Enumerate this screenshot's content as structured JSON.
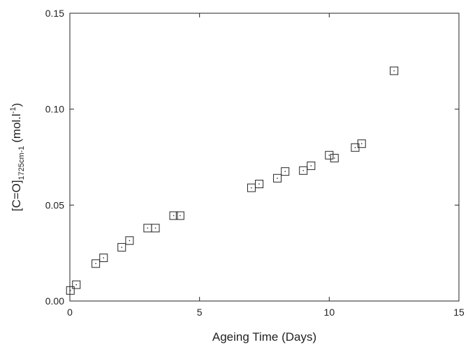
{
  "chart_data": {
    "type": "scatter",
    "title": "",
    "xlabel": "Ageing Time (Days)",
    "ylabel": {
      "main": "[C=O]",
      "subscript": "1725cm-1",
      "unit_open": " (mol.l",
      "unit_sup": "-1",
      "unit_close": ")"
    },
    "xlim": [
      0,
      15
    ],
    "ylim": [
      0,
      0.15
    ],
    "x_ticks": [
      {
        "value": 0,
        "label": "0"
      },
      {
        "value": 5,
        "label": "5"
      },
      {
        "value": 10,
        "label": "10"
      },
      {
        "value": 15,
        "label": "15"
      }
    ],
    "y_ticks": [
      {
        "value": 0,
        "label": "0.00"
      },
      {
        "value": 0.05,
        "label": "0.05"
      },
      {
        "value": 0.1,
        "label": "0.10"
      },
      {
        "value": 0.15,
        "label": "0.15"
      }
    ],
    "grid": false,
    "marker": "open-square",
    "series": [
      {
        "points": [
          {
            "x": 0.02,
            "y": 0.0055
          },
          {
            "x": 0.25,
            "y": 0.0085
          },
          {
            "x": 1.0,
            "y": 0.0195
          },
          {
            "x": 1.3,
            "y": 0.0225
          },
          {
            "x": 2.0,
            "y": 0.028
          },
          {
            "x": 2.3,
            "y": 0.0315
          },
          {
            "x": 3.0,
            "y": 0.038
          },
          {
            "x": 3.3,
            "y": 0.038
          },
          {
            "x": 4.0,
            "y": 0.0445
          },
          {
            "x": 4.25,
            "y": 0.0445
          },
          {
            "x": 7.0,
            "y": 0.059
          },
          {
            "x": 7.3,
            "y": 0.061
          },
          {
            "x": 8.0,
            "y": 0.064
          },
          {
            "x": 8.3,
            "y": 0.0675
          },
          {
            "x": 9.0,
            "y": 0.068
          },
          {
            "x": 9.3,
            "y": 0.0705
          },
          {
            "x": 10.0,
            "y": 0.076
          },
          {
            "x": 10.2,
            "y": 0.0745
          },
          {
            "x": 11.0,
            "y": 0.08
          },
          {
            "x": 11.25,
            "y": 0.082
          },
          {
            "x": 12.5,
            "y": 0.12
          }
        ]
      }
    ]
  }
}
